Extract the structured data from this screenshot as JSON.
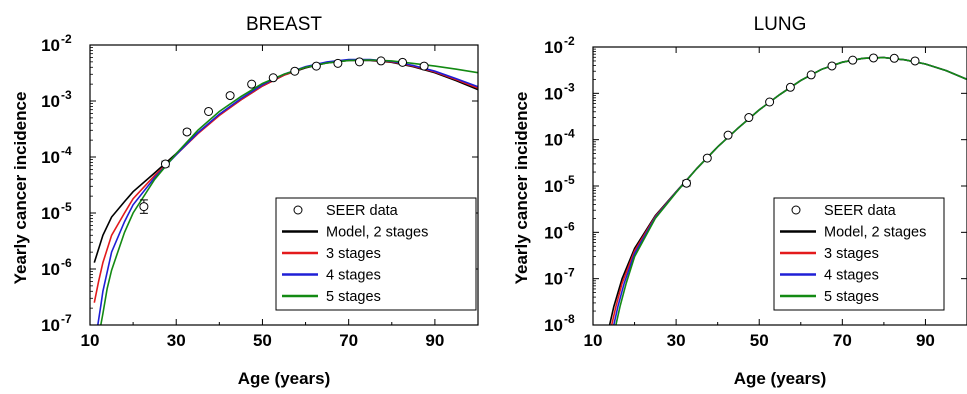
{
  "chart_data": [
    {
      "type": "line",
      "title": "BREAST",
      "xlabel": "Age (years)",
      "ylabel": "Yearly cancer incidence",
      "xlim": [
        10,
        100
      ],
      "ylim": [
        1e-07,
        0.01
      ],
      "y_scale": "log",
      "x_ticks": [
        {
          "value": 10,
          "label": "10"
        },
        {
          "value": 30,
          "label": "30"
        },
        {
          "value": 50,
          "label": "50"
        },
        {
          "value": 70,
          "label": "70"
        },
        {
          "value": 90,
          "label": "90"
        }
      ],
      "y_ticks": [
        {
          "value": 1e-07,
          "base": "10",
          "exp": "-7"
        },
        {
          "value": 1e-06,
          "base": "10",
          "exp": "-6"
        },
        {
          "value": 1e-05,
          "base": "10",
          "exp": "-5"
        },
        {
          "value": 0.0001,
          "base": "10",
          "exp": "-4"
        },
        {
          "value": 0.001,
          "base": "10",
          "exp": "-3"
        },
        {
          "value": 0.01,
          "base": "10",
          "exp": "-2"
        }
      ],
      "legend": {
        "position": "bottom-right",
        "entries": [
          {
            "label": "SEER data",
            "marker": "circle"
          },
          {
            "label": "Model, 2 stages",
            "color": "#000000"
          },
          {
            "label": "3 stages",
            "color": "#e31a1c"
          },
          {
            "label": "4 stages",
            "color": "#1f1fd6"
          },
          {
            "label": "5 stages",
            "color": "#138a13"
          }
        ]
      },
      "scatter": {
        "name": "SEER data",
        "x": [
          22.5,
          27.5,
          32.5,
          37.5,
          42.5,
          47.5,
          52.5,
          57.5,
          62.5,
          67.5,
          72.5,
          77.5,
          82.5,
          87.5
        ],
        "y": [
          1.3e-05,
          7.5e-05,
          0.00028,
          0.00065,
          0.00125,
          0.002,
          0.0026,
          0.0034,
          0.0042,
          0.0047,
          0.005,
          0.0052,
          0.0049,
          0.0042
        ],
        "err": [
          0.12,
          0.05,
          0.04,
          0.02,
          0.02,
          0.02,
          0.02,
          0.02,
          0.02,
          0.02,
          0.02,
          0.02,
          0.02,
          0.02
        ]
      },
      "series": [
        {
          "name": "Model, 2 stages",
          "color": "#000000",
          "x": [
            11,
            13,
            15,
            18,
            20,
            25,
            30,
            35,
            40,
            45,
            50,
            55,
            60,
            65,
            70,
            75,
            80,
            85,
            90,
            95,
            100
          ],
          "y": [
            1.3e-06,
            4e-06,
            8.5e-06,
            1.6e-05,
            2.4e-05,
            5.2e-05,
            0.000115,
            0.00027,
            0.00056,
            0.00105,
            0.00185,
            0.0029,
            0.0039,
            0.0048,
            0.0053,
            0.0053,
            0.0049,
            0.0041,
            0.0032,
            0.0023,
            0.0016
          ]
        },
        {
          "name": "3 stages",
          "color": "#e31a1c",
          "x": [
            11,
            12,
            13,
            15,
            18,
            20,
            25,
            30,
            35,
            40,
            45,
            50,
            55,
            60,
            65,
            70,
            75,
            80,
            85,
            90,
            95,
            100
          ],
          "y": [
            2.5e-07,
            6e-07,
            1.3e-06,
            4e-06,
            1e-05,
            1.8e-05,
            4.7e-05,
            0.00011,
            0.00026,
            0.00055,
            0.00105,
            0.00185,
            0.0029,
            0.004,
            0.0049,
            0.0054,
            0.0054,
            0.005,
            0.0042,
            0.0033,
            0.0024,
            0.0017
          ]
        },
        {
          "name": "4 stages",
          "color": "#1f1fd6",
          "x": [
            11.8,
            12.5,
            13,
            15,
            18,
            20,
            25,
            30,
            35,
            40,
            45,
            50,
            55,
            60,
            65,
            70,
            75,
            80,
            85,
            90,
            95,
            100
          ],
          "y": [
            1e-07,
            2.2e-07,
            4e-07,
            2e-06,
            7e-06,
            1.4e-05,
            4.3e-05,
            0.00011,
            0.00027,
            0.00058,
            0.0011,
            0.00195,
            0.003,
            0.0041,
            0.005,
            0.0055,
            0.0055,
            0.0051,
            0.0043,
            0.0034,
            0.0025,
            0.0018
          ]
        },
        {
          "name": "5 stages",
          "color": "#138a13",
          "x": [
            12.5,
            13,
            14,
            15,
            18,
            20,
            25,
            30,
            35,
            40,
            45,
            50,
            55,
            60,
            65,
            70,
            75,
            80,
            85,
            90,
            95,
            100
          ],
          "y": [
            1e-07,
            1.6e-07,
            4.5e-07,
            9.5e-07,
            4.5e-06,
            1e-05,
            4e-05,
            0.000115,
            0.0003,
            0.00065,
            0.0012,
            0.00205,
            0.003,
            0.004,
            0.0048,
            0.0053,
            0.0054,
            0.0052,
            0.0047,
            0.0042,
            0.0037,
            0.0032
          ]
        }
      ]
    },
    {
      "type": "line",
      "title": "LUNG",
      "xlabel": "Age (years)",
      "ylabel": "Yearly cancer incidence",
      "xlim": [
        10,
        100
      ],
      "ylim": [
        1e-08,
        0.01
      ],
      "y_scale": "log",
      "x_ticks": [
        {
          "value": 10,
          "label": "10"
        },
        {
          "value": 30,
          "label": "30"
        },
        {
          "value": 50,
          "label": "50"
        },
        {
          "value": 70,
          "label": "70"
        },
        {
          "value": 90,
          "label": "90"
        }
      ],
      "y_ticks": [
        {
          "value": 1e-08,
          "base": "10",
          "exp": "-8"
        },
        {
          "value": 1e-07,
          "base": "10",
          "exp": "-7"
        },
        {
          "value": 1e-06,
          "base": "10",
          "exp": "-6"
        },
        {
          "value": 1e-05,
          "base": "10",
          "exp": "-5"
        },
        {
          "value": 0.0001,
          "base": "10",
          "exp": "-4"
        },
        {
          "value": 0.001,
          "base": "10",
          "exp": "-3"
        },
        {
          "value": 0.01,
          "base": "10",
          "exp": "-2"
        }
      ],
      "legend": {
        "position": "bottom-right",
        "entries": [
          {
            "label": "SEER data",
            "marker": "circle"
          },
          {
            "label": "Model, 2 stages",
            "color": "#000000"
          },
          {
            "label": "3 stages",
            "color": "#e31a1c"
          },
          {
            "label": "4 stages",
            "color": "#1f1fd6"
          },
          {
            "label": "5 stages",
            "color": "#138a13"
          }
        ]
      },
      "scatter": {
        "name": "SEER data",
        "x": [
          32.5,
          37.5,
          42.5,
          47.5,
          52.5,
          57.5,
          62.5,
          67.5,
          72.5,
          77.5,
          82.5,
          87.5
        ],
        "y": [
          1.15e-05,
          4e-05,
          0.000125,
          0.0003,
          0.00065,
          0.00135,
          0.0025,
          0.0039,
          0.0052,
          0.0058,
          0.0057,
          0.005
        ],
        "err": [
          0.06,
          0.03,
          0.02,
          0.02,
          0.02,
          0.02,
          0.02,
          0.02,
          0.02,
          0.02,
          0.02,
          0.02
        ]
      },
      "series": [
        {
          "name": "Model, 2 stages",
          "color": "#000000",
          "x": [
            14,
            15,
            17,
            20,
            25,
            30,
            35,
            40,
            45,
            50,
            55,
            60,
            65,
            70,
            75,
            80,
            85,
            90,
            95,
            100
          ],
          "y": [
            1e-08,
            2.5e-08,
            1e-07,
            4.5e-07,
            2.3e-06,
            7.5e-06,
            2.4e-05,
            7e-05,
            0.00018,
            0.00044,
            0.00095,
            0.0019,
            0.0033,
            0.0047,
            0.0057,
            0.0059,
            0.0053,
            0.0043,
            0.0031,
            0.002
          ]
        },
        {
          "name": "3 stages",
          "color": "#e31a1c",
          "x": [
            14.5,
            15.5,
            17,
            20,
            25,
            30,
            35,
            40,
            45,
            50,
            55,
            60,
            65,
            70,
            75,
            80,
            85,
            90,
            95,
            100
          ],
          "y": [
            1e-08,
            2.5e-08,
            8e-08,
            4e-07,
            2.2e-06,
            7.4e-06,
            2.4e-05,
            7e-05,
            0.00018,
            0.00044,
            0.00095,
            0.0019,
            0.0033,
            0.0047,
            0.0057,
            0.0059,
            0.0053,
            0.0043,
            0.0031,
            0.002
          ]
        },
        {
          "name": "4 stages",
          "color": "#1f1fd6",
          "x": [
            15,
            16,
            17.5,
            20,
            25,
            30,
            35,
            40,
            45,
            50,
            55,
            60,
            65,
            70,
            75,
            80,
            85,
            90,
            95,
            100
          ],
          "y": [
            1e-08,
            2.5e-08,
            8e-08,
            3.5e-07,
            2.1e-06,
            7.3e-06,
            2.4e-05,
            7e-05,
            0.00018,
            0.00044,
            0.00095,
            0.0019,
            0.0033,
            0.0047,
            0.0057,
            0.0059,
            0.0053,
            0.0043,
            0.0031,
            0.002
          ]
        },
        {
          "name": "5 stages",
          "color": "#138a13",
          "x": [
            15.5,
            16.5,
            18,
            20,
            25,
            30,
            35,
            40,
            45,
            50,
            55,
            60,
            65,
            70,
            75,
            80,
            85,
            90,
            95,
            100
          ],
          "y": [
            1e-08,
            2.5e-08,
            8e-08,
            3e-07,
            2e-06,
            7.2e-06,
            2.4e-05,
            7e-05,
            0.00018,
            0.00044,
            0.00095,
            0.0019,
            0.0033,
            0.0047,
            0.0057,
            0.0059,
            0.0053,
            0.0043,
            0.0031,
            0.002
          ]
        }
      ]
    }
  ]
}
